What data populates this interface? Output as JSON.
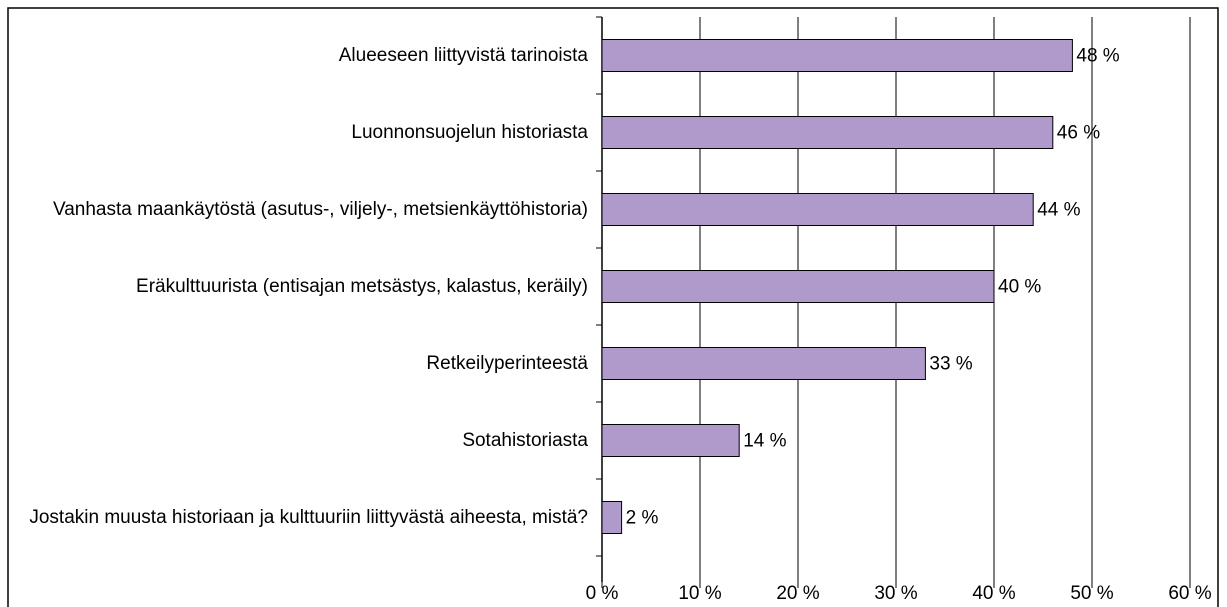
{
  "chart_data": {
    "type": "hbar",
    "categories": [
      "Alueeseen liittyvistä tarinoista",
      "Luonnonsuojelun historiasta",
      "Vanhasta maankäytöstä (asutus-, viljely-, metsienkäyttöhistoria)",
      "Eräkulttuurista (entisajan metsästys, kalastus, keräily)",
      "Retkeilyperinteestä",
      "Sotahistoriasta",
      "Jostakin muusta historiaan ja kulttuuriin liittyvästä aiheesta, mistä?"
    ],
    "values": [
      48,
      46,
      44,
      40,
      33,
      14,
      2
    ],
    "value_labels": [
      "48 %",
      "46 %",
      "44 %",
      "40 %",
      "33 %",
      "14 %",
      "2 %"
    ],
    "color": "#b09acb",
    "xlim": [
      0,
      60
    ],
    "xticks": [
      {
        "value": 0,
        "label": "0 %"
      },
      {
        "value": 10,
        "label": "10 %"
      },
      {
        "value": 20,
        "label": "20 %"
      },
      {
        "value": 30,
        "label": "30 %"
      },
      {
        "value": 40,
        "label": "40 %"
      },
      {
        "value": 50,
        "label": "50 %"
      },
      {
        "value": 60,
        "label": "60 %"
      }
    ],
    "grid": true
  }
}
